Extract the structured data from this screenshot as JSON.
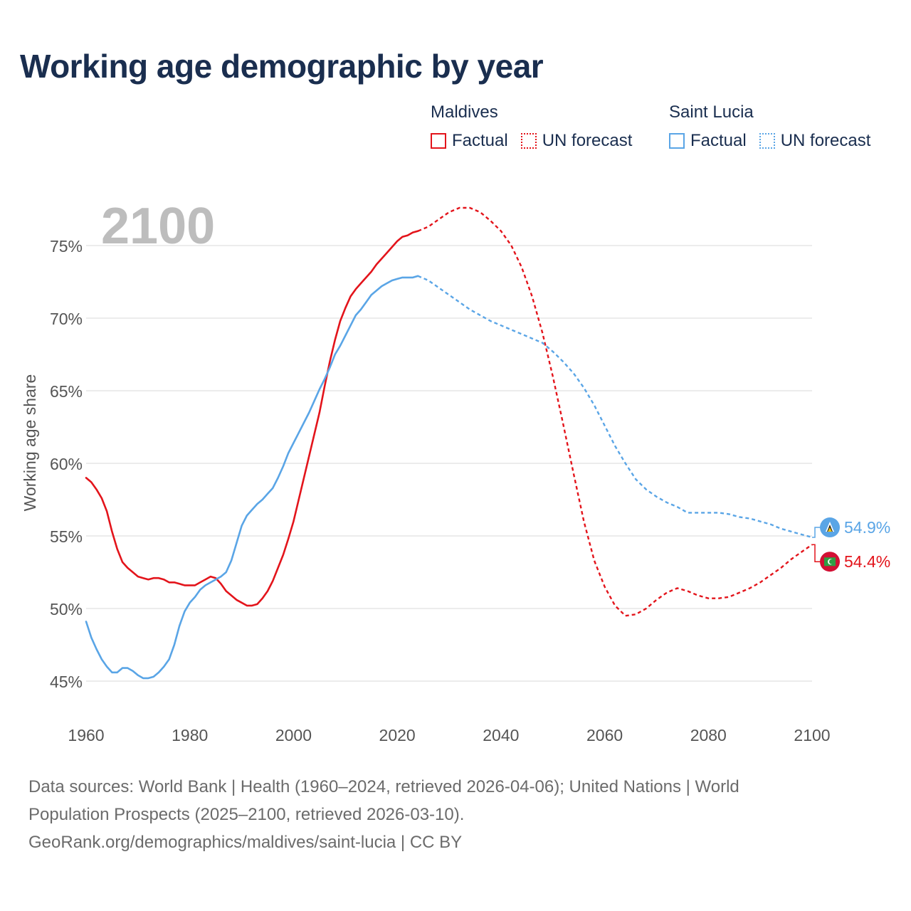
{
  "title": "Working age demographic by year",
  "legend": {
    "groups": [
      {
        "name": "Maldives",
        "color": "#e3141b",
        "factual_label": "Factual",
        "forecast_label": "UN forecast"
      },
      {
        "name": "Saint Lucia",
        "color": "#5aa5e6",
        "factual_label": "Factual",
        "forecast_label": "UN forecast"
      }
    ]
  },
  "footer": {
    "line1": "Data sources: World Bank | Health (1960–2024, retrieved 2026-04-06); United Nations | World",
    "line2": "Population Prospects (2025–2100, retrieved 2026-03-10).",
    "line3": "GeoRank.org/demographics/maldives/saint-lucia | CC BY"
  },
  "chart_data": {
    "type": "line",
    "title": "Working age demographic by year",
    "year_overlay": "2100",
    "xlabel": "",
    "ylabel": "Working age share",
    "xlim": [
      1960,
      2100
    ],
    "ylim": [
      43.5,
      77.5
    ],
    "x_ticks": [
      1960,
      1980,
      2000,
      2020,
      2040,
      2060,
      2080,
      2100
    ],
    "x_tick_labels": [
      "1960",
      "1980",
      "2000",
      "2020",
      "2040",
      "2060",
      "2080",
      "2100"
    ],
    "y_ticks": [
      45,
      50,
      55,
      60,
      65,
      70,
      75
    ],
    "y_tick_labels": [
      "45%",
      "50%",
      "55%",
      "60%",
      "65%",
      "70%",
      "75%"
    ],
    "grid": true,
    "forecast_start": 2024,
    "series": [
      {
        "name": "Maldives",
        "color": "#e3141b",
        "end_label": "54.4%",
        "factual": [
          [
            1960,
            59.0
          ],
          [
            1961,
            58.7
          ],
          [
            1962,
            58.2
          ],
          [
            1963,
            57.6
          ],
          [
            1964,
            56.7
          ],
          [
            1965,
            55.3
          ],
          [
            1966,
            54.1
          ],
          [
            1967,
            53.2
          ],
          [
            1968,
            52.8
          ],
          [
            1969,
            52.5
          ],
          [
            1970,
            52.2
          ],
          [
            1971,
            52.1
          ],
          [
            1972,
            52.0
          ],
          [
            1973,
            52.1
          ],
          [
            1974,
            52.1
          ],
          [
            1975,
            52.0
          ],
          [
            1976,
            51.8
          ],
          [
            1977,
            51.8
          ],
          [
            1978,
            51.7
          ],
          [
            1979,
            51.6
          ],
          [
            1980,
            51.6
          ],
          [
            1981,
            51.6
          ],
          [
            1982,
            51.8
          ],
          [
            1983,
            52.0
          ],
          [
            1984,
            52.2
          ],
          [
            1985,
            52.1
          ],
          [
            1986,
            51.7
          ],
          [
            1987,
            51.2
          ],
          [
            1988,
            50.9
          ],
          [
            1989,
            50.6
          ],
          [
            1990,
            50.4
          ],
          [
            1991,
            50.2
          ],
          [
            1992,
            50.2
          ],
          [
            1993,
            50.3
          ],
          [
            1994,
            50.7
          ],
          [
            1995,
            51.2
          ],
          [
            1996,
            51.9
          ],
          [
            1997,
            52.8
          ],
          [
            1998,
            53.7
          ],
          [
            1999,
            54.8
          ],
          [
            2000,
            56.0
          ],
          [
            2001,
            57.5
          ],
          [
            2002,
            59.0
          ],
          [
            2003,
            60.5
          ],
          [
            2004,
            62.0
          ],
          [
            2005,
            63.5
          ],
          [
            2006,
            65.3
          ],
          [
            2007,
            67.0
          ],
          [
            2008,
            68.5
          ],
          [
            2009,
            69.8
          ],
          [
            2010,
            70.7
          ],
          [
            2011,
            71.5
          ],
          [
            2012,
            72.0
          ],
          [
            2013,
            72.4
          ],
          [
            2014,
            72.8
          ],
          [
            2015,
            73.2
          ],
          [
            2016,
            73.7
          ],
          [
            2017,
            74.1
          ],
          [
            2018,
            74.5
          ],
          [
            2019,
            74.9
          ],
          [
            2020,
            75.3
          ],
          [
            2021,
            75.6
          ],
          [
            2022,
            75.7
          ],
          [
            2023,
            75.9
          ],
          [
            2024,
            76.0
          ]
        ],
        "forecast": [
          [
            2024,
            76.0
          ],
          [
            2026,
            76.3
          ],
          [
            2028,
            76.8
          ],
          [
            2030,
            77.3
          ],
          [
            2032,
            77.6
          ],
          [
            2034,
            77.6
          ],
          [
            2036,
            77.3
          ],
          [
            2038,
            76.7
          ],
          [
            2040,
            76.0
          ],
          [
            2042,
            75.0
          ],
          [
            2044,
            73.5
          ],
          [
            2046,
            71.5
          ],
          [
            2048,
            69.0
          ],
          [
            2050,
            66.0
          ],
          [
            2052,
            62.7
          ],
          [
            2054,
            59.3
          ],
          [
            2056,
            56.0
          ],
          [
            2058,
            53.3
          ],
          [
            2060,
            51.5
          ],
          [
            2062,
            50.2
          ],
          [
            2064,
            49.5
          ],
          [
            2066,
            49.6
          ],
          [
            2068,
            50.0
          ],
          [
            2070,
            50.6
          ],
          [
            2072,
            51.1
          ],
          [
            2074,
            51.4
          ],
          [
            2076,
            51.2
          ],
          [
            2078,
            50.9
          ],
          [
            2080,
            50.7
          ],
          [
            2082,
            50.7
          ],
          [
            2084,
            50.8
          ],
          [
            2086,
            51.1
          ],
          [
            2088,
            51.4
          ],
          [
            2090,
            51.8
          ],
          [
            2092,
            52.3
          ],
          [
            2094,
            52.8
          ],
          [
            2096,
            53.4
          ],
          [
            2098,
            53.9
          ],
          [
            2100,
            54.4
          ]
        ]
      },
      {
        "name": "Saint Lucia",
        "color": "#5aa5e6",
        "end_label": "54.9%",
        "factual": [
          [
            1960,
            49.1
          ],
          [
            1961,
            48.0
          ],
          [
            1962,
            47.2
          ],
          [
            1963,
            46.5
          ],
          [
            1964,
            46.0
          ],
          [
            1965,
            45.6
          ],
          [
            1966,
            45.6
          ],
          [
            1967,
            45.9
          ],
          [
            1968,
            45.9
          ],
          [
            1969,
            45.7
          ],
          [
            1970,
            45.4
          ],
          [
            1971,
            45.2
          ],
          [
            1972,
            45.2
          ],
          [
            1973,
            45.3
          ],
          [
            1974,
            45.6
          ],
          [
            1975,
            46.0
          ],
          [
            1976,
            46.5
          ],
          [
            1977,
            47.5
          ],
          [
            1978,
            48.8
          ],
          [
            1979,
            49.8
          ],
          [
            1980,
            50.4
          ],
          [
            1981,
            50.8
          ],
          [
            1982,
            51.3
          ],
          [
            1983,
            51.6
          ],
          [
            1984,
            51.8
          ],
          [
            1985,
            52.0
          ],
          [
            1986,
            52.2
          ],
          [
            1987,
            52.5
          ],
          [
            1988,
            53.3
          ],
          [
            1989,
            54.5
          ],
          [
            1990,
            55.7
          ],
          [
            1991,
            56.4
          ],
          [
            1992,
            56.8
          ],
          [
            1993,
            57.2
          ],
          [
            1994,
            57.5
          ],
          [
            1995,
            57.9
          ],
          [
            1996,
            58.3
          ],
          [
            1997,
            59.0
          ],
          [
            1998,
            59.8
          ],
          [
            1999,
            60.7
          ],
          [
            2000,
            61.4
          ],
          [
            2001,
            62.1
          ],
          [
            2002,
            62.8
          ],
          [
            2003,
            63.5
          ],
          [
            2004,
            64.3
          ],
          [
            2005,
            65.1
          ],
          [
            2006,
            65.8
          ],
          [
            2007,
            66.6
          ],
          [
            2008,
            67.5
          ],
          [
            2009,
            68.1
          ],
          [
            2010,
            68.8
          ],
          [
            2011,
            69.5
          ],
          [
            2012,
            70.2
          ],
          [
            2013,
            70.6
          ],
          [
            2014,
            71.1
          ],
          [
            2015,
            71.6
          ],
          [
            2016,
            71.9
          ],
          [
            2017,
            72.2
          ],
          [
            2018,
            72.4
          ],
          [
            2019,
            72.6
          ],
          [
            2020,
            72.7
          ],
          [
            2021,
            72.8
          ],
          [
            2022,
            72.8
          ],
          [
            2023,
            72.8
          ],
          [
            2024,
            72.9
          ]
        ],
        "forecast": [
          [
            2024,
            72.9
          ],
          [
            2026,
            72.6
          ],
          [
            2028,
            72.1
          ],
          [
            2030,
            71.6
          ],
          [
            2032,
            71.1
          ],
          [
            2034,
            70.6
          ],
          [
            2036,
            70.2
          ],
          [
            2038,
            69.8
          ],
          [
            2040,
            69.5
          ],
          [
            2042,
            69.2
          ],
          [
            2044,
            68.9
          ],
          [
            2046,
            68.6
          ],
          [
            2048,
            68.3
          ],
          [
            2050,
            67.7
          ],
          [
            2052,
            67.0
          ],
          [
            2054,
            66.2
          ],
          [
            2056,
            65.2
          ],
          [
            2058,
            64.0
          ],
          [
            2060,
            62.6
          ],
          [
            2062,
            61.2
          ],
          [
            2064,
            60.0
          ],
          [
            2066,
            58.9
          ],
          [
            2068,
            58.2
          ],
          [
            2070,
            57.7
          ],
          [
            2072,
            57.3
          ],
          [
            2074,
            57.0
          ],
          [
            2076,
            56.6
          ],
          [
            2078,
            56.6
          ],
          [
            2080,
            56.6
          ],
          [
            2082,
            56.6
          ],
          [
            2084,
            56.5
          ],
          [
            2086,
            56.3
          ],
          [
            2088,
            56.2
          ],
          [
            2090,
            56.0
          ],
          [
            2092,
            55.8
          ],
          [
            2094,
            55.5
          ],
          [
            2096,
            55.3
          ],
          [
            2098,
            55.1
          ],
          [
            2100,
            54.9
          ]
        ]
      }
    ]
  }
}
